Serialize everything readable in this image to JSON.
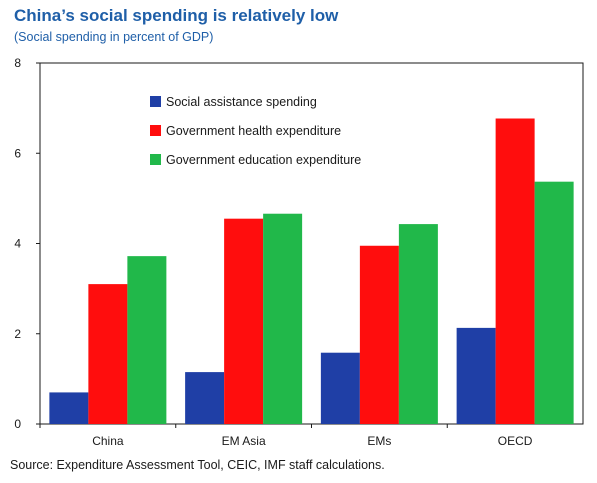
{
  "chart_data": {
    "type": "bar",
    "title": "China’s social spending is relatively low",
    "subtitle": "(Social spending in percent of GDP)",
    "source": "Source: Expenditure Assessment Tool, CEIC, IMF staff calculations.",
    "categories": [
      "China",
      "EM Asia",
      "EMs",
      "OECD"
    ],
    "series": [
      {
        "name": "Social assistance spending",
        "color": "#1f3fa6",
        "values": [
          0.7,
          1.15,
          1.58,
          2.13
        ]
      },
      {
        "name": "Government health expenditure",
        "color": "#ff0d0d",
        "values": [
          3.1,
          4.55,
          3.95,
          6.77
        ]
      },
      {
        "name": "Government education expenditure",
        "color": "#21b84a",
        "values": [
          3.72,
          4.66,
          4.43,
          5.37
        ]
      }
    ],
    "ylim": [
      0,
      8
    ],
    "yticks": [
      "0",
      "2",
      "4",
      "6",
      "8"
    ],
    "legend_position": "top-left inside",
    "grid": false
  }
}
